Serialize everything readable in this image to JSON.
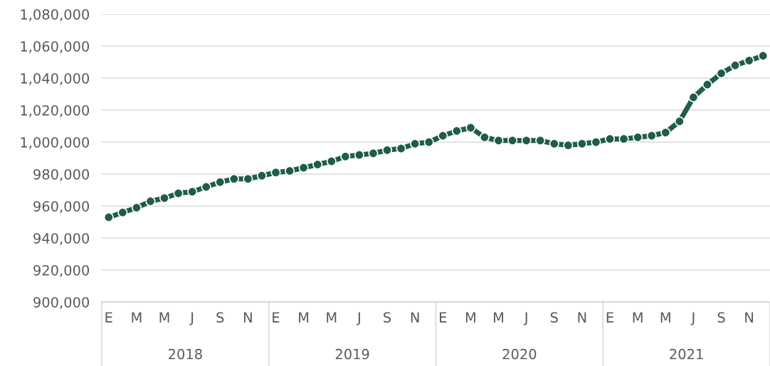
{
  "chart_data": {
    "type": "line",
    "categories": [
      "E",
      null,
      "M",
      null,
      "M",
      null,
      "J",
      null,
      "S",
      null,
      "N",
      null,
      "E",
      null,
      "M",
      null,
      "M",
      null,
      "J",
      null,
      "S",
      null,
      "N",
      null,
      "E",
      null,
      "M",
      null,
      "M",
      null,
      "J",
      null,
      "S",
      null,
      "N",
      null,
      "E",
      null,
      "M",
      null,
      "M",
      null,
      "J",
      null,
      "S",
      null,
      "N",
      null
    ],
    "series": [
      {
        "color": "#1f5c4a",
        "values": [
          953000,
          956000,
          959000,
          963000,
          965000,
          968000,
          969000,
          972000,
          975000,
          977000,
          977000,
          979000,
          981000,
          982000,
          984000,
          986000,
          988000,
          991000,
          992000,
          993000,
          995000,
          996000,
          999000,
          1000000,
          1004000,
          1007000,
          1009000,
          1003000,
          1001000,
          1001000,
          1001000,
          1001000,
          999000,
          998000,
          999000,
          1000000,
          1002000,
          1002000,
          1003000,
          1004000,
          1006000,
          1013000,
          1028000,
          1036000,
          1043000,
          1048000,
          1051000,
          1054000
        ]
      }
    ],
    "ylim": [
      900000,
      1080000
    ],
    "yticks": [
      {
        "value": 900000,
        "label": "900,000"
      },
      {
        "value": 920000,
        "label": "920,000"
      },
      {
        "value": 940000,
        "label": "940,000"
      },
      {
        "value": 960000,
        "label": "960,000"
      },
      {
        "value": 980000,
        "label": "980,000"
      },
      {
        "value": 1000000,
        "label": "1,000,000"
      },
      {
        "value": 1020000,
        "label": "1,020,000"
      },
      {
        "value": 1040000,
        "label": "1,040,000"
      },
      {
        "value": 1060000,
        "label": "1,060,000"
      },
      {
        "value": 1080000,
        "label": "1,080,000"
      }
    ],
    "grid": "y",
    "marker": "circle",
    "line_style": "solid",
    "annotations": [
      "2018",
      "2019",
      "2020",
      "2021"
    ]
  }
}
